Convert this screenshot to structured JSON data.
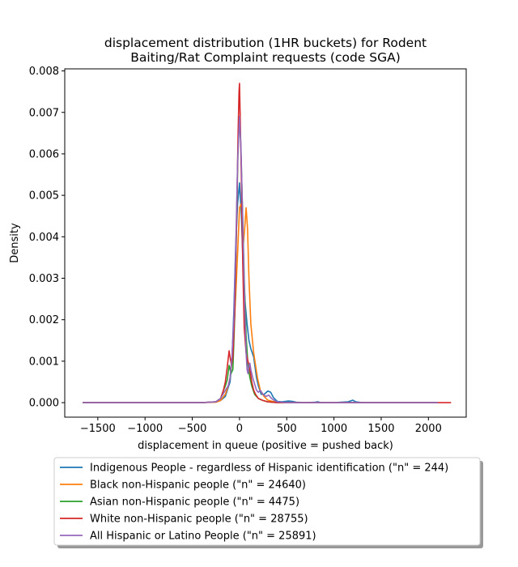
{
  "chart_data": {
    "type": "line",
    "title_lines": [
      "displacement distribution (1HR buckets) for Rodent",
      "Baiting/Rat Complaint requests (code SGA)"
    ],
    "xlabel": "displacement in queue (positive = pushed back)",
    "ylabel": "Density",
    "xlim": [
      -1850,
      2400
    ],
    "ylim": [
      -0.00035,
      0.00805
    ],
    "x_ticks": [
      -1500,
      -1000,
      -500,
      0,
      500,
      1000,
      1500,
      2000
    ],
    "x_tick_labels": [
      "−1500",
      "−1000",
      "−500",
      "0",
      "500",
      "1000",
      "1500",
      "2000"
    ],
    "y_ticks": [
      0.0,
      0.001,
      0.002,
      0.003,
      0.004,
      0.005,
      0.006,
      0.007,
      0.008
    ],
    "y_tick_labels": [
      "0.000",
      "0.001",
      "0.002",
      "0.003",
      "0.004",
      "0.005",
      "0.006",
      "0.007",
      "0.008"
    ],
    "grid": false,
    "legend_position": "below",
    "series": [
      {
        "name": "Indigenous People - regardless of Hispanic identification (\"n\" = 244)",
        "color": "#1f77b4",
        "x": [
          -1660,
          -800,
          -400,
          -250,
          -200,
          -150,
          -100,
          -80,
          -60,
          -40,
          -20,
          0,
          20,
          40,
          60,
          80,
          100,
          120,
          150,
          180,
          200,
          230,
          260,
          300,
          330,
          360,
          400,
          450,
          520,
          560,
          600,
          700,
          800,
          830,
          860,
          1000,
          1150,
          1200,
          1230,
          1300,
          1600,
          2100
        ],
        "y": [
          0.0,
          0.0,
          0.0,
          2e-05,
          5e-05,
          0.00015,
          0.0005,
          0.001,
          0.0022,
          0.0038,
          0.0048,
          0.0053,
          0.0045,
          0.0032,
          0.0024,
          0.0019,
          0.0015,
          0.0013,
          0.0011,
          0.0006,
          0.0004,
          0.0002,
          0.0002,
          0.00028,
          0.00025,
          0.00012,
          3e-05,
          2e-05,
          4e-05,
          3e-05,
          1e-05,
          0.0,
          1e-05,
          2e-05,
          0.0,
          0.0,
          2e-05,
          6e-05,
          2e-05,
          0.0,
          0.0,
          0.0
        ]
      },
      {
        "name": "Black non-Hispanic people (\"n\" = 24640)",
        "color": "#ff7f0e",
        "x": [
          -1660,
          -800,
          -400,
          -250,
          -200,
          -150,
          -120,
          -100,
          -80,
          -60,
          -40,
          -20,
          0,
          20,
          40,
          55,
          70,
          85,
          100,
          120,
          150,
          170,
          190,
          220,
          260,
          300,
          350,
          400,
          500,
          800,
          1200,
          2100
        ],
        "y": [
          0.0,
          0.0,
          0.0,
          1e-05,
          5e-05,
          0.0002,
          0.0004,
          0.0006,
          0.001,
          0.0017,
          0.0026,
          0.0036,
          0.0047,
          0.0048,
          0.0038,
          0.0042,
          0.0047,
          0.0042,
          0.003,
          0.0019,
          0.0012,
          0.0009,
          0.0006,
          0.0003,
          0.00015,
          6e-05,
          3e-05,
          1e-05,
          0.0,
          0.0,
          0.0,
          0.0
        ]
      },
      {
        "name": "Asian non-Hispanic people (\"n\" = 4475)",
        "color": "#2ca02c",
        "x": [
          -1660,
          -800,
          -400,
          -250,
          -200,
          -170,
          -150,
          -130,
          -110,
          -90,
          -70,
          -50,
          -30,
          -15,
          0,
          15,
          30,
          50,
          70,
          90,
          110,
          130,
          160,
          200,
          250,
          300,
          400,
          600,
          1200,
          2100
        ],
        "y": [
          0.0,
          0.0,
          0.0,
          2e-05,
          0.0001,
          0.0003,
          0.0004,
          0.00055,
          0.0009,
          0.0007,
          0.0008,
          0.0021,
          0.0044,
          0.0062,
          0.0069,
          0.0061,
          0.0048,
          0.003,
          0.0016,
          0.0009,
          0.0006,
          0.0004,
          0.0002,
          0.0001,
          5e-05,
          2e-05,
          0.0,
          0.0,
          0.0,
          0.0
        ]
      },
      {
        "name": "White non-Hispanic people (\"n\" = 28755)",
        "color": "#d62728",
        "x": [
          -1660,
          -800,
          -400,
          -250,
          -200,
          -170,
          -150,
          -130,
          -110,
          -100,
          -85,
          -70,
          -50,
          -30,
          -15,
          -5,
          0,
          10,
          20,
          35,
          50,
          70,
          90,
          110,
          130,
          150,
          170,
          200,
          250,
          300,
          400,
          600,
          1200,
          2240
        ],
        "y": [
          0.0,
          0.0,
          0.0,
          2e-05,
          0.0001,
          0.0003,
          0.0005,
          0.00085,
          0.00125,
          0.0011,
          0.0009,
          0.0011,
          0.0022,
          0.0045,
          0.0065,
          0.0075,
          0.0077,
          0.0066,
          0.0054,
          0.0033,
          0.0018,
          0.0012,
          0.001,
          0.0008,
          0.0005,
          0.0003,
          0.0002,
          0.0001,
          5e-05,
          2e-05,
          0.0,
          0.0,
          0.0,
          0.0
        ]
      },
      {
        "name": "All Hispanic or Latino People (\"n\" = 25891)",
        "color": "#9467bd",
        "x": [
          -1660,
          -800,
          -400,
          -250,
          -200,
          -150,
          -120,
          -100,
          -80,
          -60,
          -40,
          -20,
          0,
          15,
          30,
          45,
          60,
          70,
          80,
          90,
          100,
          110,
          120,
          140,
          160,
          180,
          200,
          220,
          250,
          280,
          310,
          340,
          370,
          400,
          500,
          800,
          1200,
          2100
        ],
        "y": [
          0.0,
          0.0,
          0.0,
          2e-05,
          0.0001,
          0.0003,
          0.0004,
          0.0006,
          0.0011,
          0.002,
          0.0037,
          0.0058,
          0.0069,
          0.0062,
          0.0048,
          0.0033,
          0.0019,
          0.0012,
          0.0008,
          0.0007,
          0.0009,
          0.00095,
          0.0008,
          0.0006,
          0.00045,
          0.0003,
          0.00025,
          0.0003,
          0.0002,
          0.00015,
          0.00018,
          0.0001,
          5e-05,
          2e-05,
          0.0,
          0.0,
          0.0,
          0.0
        ]
      }
    ]
  }
}
